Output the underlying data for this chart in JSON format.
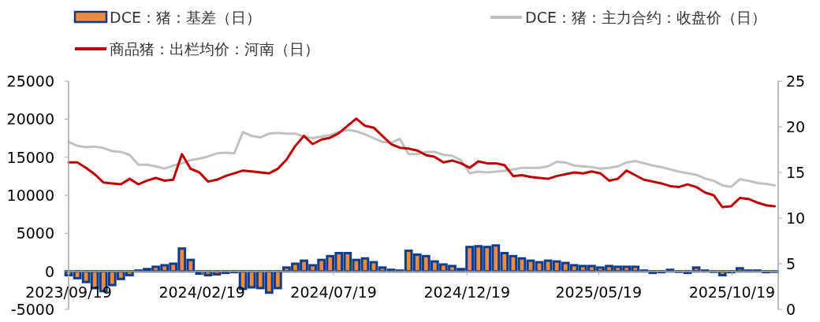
{
  "chart_data": {
    "type": "bar",
    "x": [
      "2023-09-19",
      "2023-09-29",
      "2023-10-09",
      "2023-10-19",
      "2023-10-29",
      "2023-11-08",
      "2023-11-18",
      "2023-11-28",
      "2023-12-08",
      "2023-12-18",
      "2023-12-28",
      "2024-01-07",
      "2024-01-17",
      "2024-01-27",
      "2024-02-06",
      "2024-02-16",
      "2024-02-26",
      "2024-03-07",
      "2024-03-17",
      "2024-03-27",
      "2024-04-06",
      "2024-04-16",
      "2024-04-26",
      "2024-05-06",
      "2024-05-16",
      "2024-05-26",
      "2024-06-05",
      "2024-06-15",
      "2024-06-25",
      "2024-07-05",
      "2024-07-15",
      "2024-07-25",
      "2024-08-04",
      "2024-08-14",
      "2024-08-24",
      "2024-09-03",
      "2024-09-13",
      "2024-09-23",
      "2024-10-03",
      "2024-10-13",
      "2024-10-23",
      "2024-11-02",
      "2024-11-12",
      "2024-11-22",
      "2024-12-02",
      "2024-12-12",
      "2024-12-22",
      "2025-01-01",
      "2025-01-11",
      "2025-01-21",
      "2025-01-31",
      "2025-02-10",
      "2025-02-20",
      "2025-03-02",
      "2025-03-12",
      "2025-03-22",
      "2025-04-01",
      "2025-04-11",
      "2025-04-21",
      "2025-05-01",
      "2025-05-11",
      "2025-05-21",
      "2025-05-31",
      "2025-06-10",
      "2025-06-20",
      "2025-06-30",
      "2025-07-10",
      "2025-07-20",
      "2025-07-30",
      "2025-08-09",
      "2025-08-19",
      "2025-08-29",
      "2025-09-08",
      "2025-09-18",
      "2025-09-28",
      "2025-10-08",
      "2025-10-18",
      "2025-10-28",
      "2025-11-07",
      "2025-11-17",
      "2025-11-27",
      "2025-12-07"
    ],
    "series": [
      {
        "name": "DCE：猪：基差（日）",
        "color": "#f08a3c",
        "values": [
          -500,
          -900,
          -1400,
          -2200,
          -2600,
          -1800,
          -1000,
          -500,
          100,
          300,
          600,
          800,
          1000,
          3000,
          1500,
          -300,
          -500,
          -400,
          -200,
          -100,
          -2300,
          -2100,
          -2200,
          -2800,
          -2200,
          500,
          1000,
          1400,
          800,
          1500,
          2000,
          2400,
          2400,
          1500,
          1700,
          1200,
          500,
          200,
          100,
          2700,
          2200,
          2000,
          1300,
          900,
          700,
          300,
          3200,
          3300,
          3200,
          3400,
          2400,
          2000,
          1700,
          1400,
          1200,
          1400,
          1300,
          1100,
          800,
          700,
          700,
          500,
          700,
          600,
          600,
          600,
          100,
          -200,
          -100,
          200,
          0,
          -200,
          500,
          100,
          0,
          -500,
          -100,
          400,
          100,
          100,
          -100,
          0
        ]
      },
      {
        "type": "line",
        "name": "DCE：猪：主力合约：收盘价（日）",
        "color": "#c0c0c0",
        "values": [
          17000,
          16500,
          16300,
          16400,
          16200,
          15800,
          15700,
          15300,
          14000,
          14000,
          13800,
          13500,
          13900,
          14200,
          14600,
          14800,
          15100,
          15500,
          15600,
          15500,
          18300,
          17800,
          17600,
          18100,
          18200,
          18100,
          18100,
          17700,
          17500,
          17700,
          17900,
          18300,
          18600,
          18400,
          18000,
          17500,
          17000,
          16900,
          17400,
          15400,
          15400,
          15700,
          15700,
          15300,
          15200,
          14600,
          12900,
          13100,
          13000,
          13100,
          13200,
          13400,
          13600,
          13600,
          13600,
          13800,
          14400,
          14300,
          13900,
          13800,
          13700,
          13500,
          13600,
          13800,
          14300,
          14500,
          14200,
          13900,
          13700,
          13400,
          13100,
          12900,
          12700,
          12200,
          11900,
          11300,
          11100,
          12100,
          11900,
          11600,
          11500,
          11300
        ]
      },
      {
        "type": "line",
        "axis": "y2",
        "name": "商品猪：出栏均价：河南（日）",
        "color": "#c00000",
        "values": [
          16.1,
          16.1,
          15.5,
          14.8,
          13.9,
          13.8,
          13.7,
          14.3,
          13.7,
          14.1,
          14.4,
          14.1,
          14.2,
          17.0,
          15.4,
          15.0,
          14.0,
          14.2,
          14.6,
          14.9,
          15.2,
          15.1,
          15.0,
          14.9,
          15.4,
          16.4,
          17.9,
          19.0,
          18.1,
          18.6,
          18.8,
          19.3,
          20.1,
          20.9,
          20.1,
          19.9,
          19.0,
          18.1,
          17.7,
          17.6,
          17.4,
          16.9,
          16.7,
          16.1,
          16.3,
          16.0,
          15.5,
          16.2,
          16.0,
          16.0,
          15.8,
          14.6,
          14.7,
          14.5,
          14.4,
          14.3,
          14.6,
          14.8,
          15.0,
          14.9,
          15.1,
          14.9,
          14.1,
          14.3,
          15.2,
          14.7,
          14.2,
          14.0,
          13.8,
          13.5,
          13.4,
          13.7,
          13.4,
          12.8,
          12.5,
          11.2,
          11.3,
          12.2,
          12.1,
          11.7,
          11.4,
          11.3
        ]
      }
    ],
    "xlim": [
      "2023-09-19",
      "2025-12-11"
    ],
    "xticks": [
      {
        "value": "2023-09-19",
        "label": "2023/09/19"
      },
      {
        "value": "2024-02-19",
        "label": "2024/02/19"
      },
      {
        "value": "2024-07-19",
        "label": "2024/07/19"
      },
      {
        "value": "2024-12-19",
        "label": "2024/12/19"
      },
      {
        "value": "2025-05-19",
        "label": "2025/05/19"
      },
      {
        "value": "2025-10-19",
        "label": "2025/10/19"
      }
    ],
    "ylim": [
      -5000,
      25000
    ],
    "yticks": [
      -5000,
      0,
      5000,
      10000,
      15000,
      20000,
      25000
    ],
    "y2lim": [
      0,
      25
    ],
    "y2ticks": [
      0,
      5,
      10,
      15,
      20,
      25
    ],
    "grid": false,
    "legend": "top"
  }
}
